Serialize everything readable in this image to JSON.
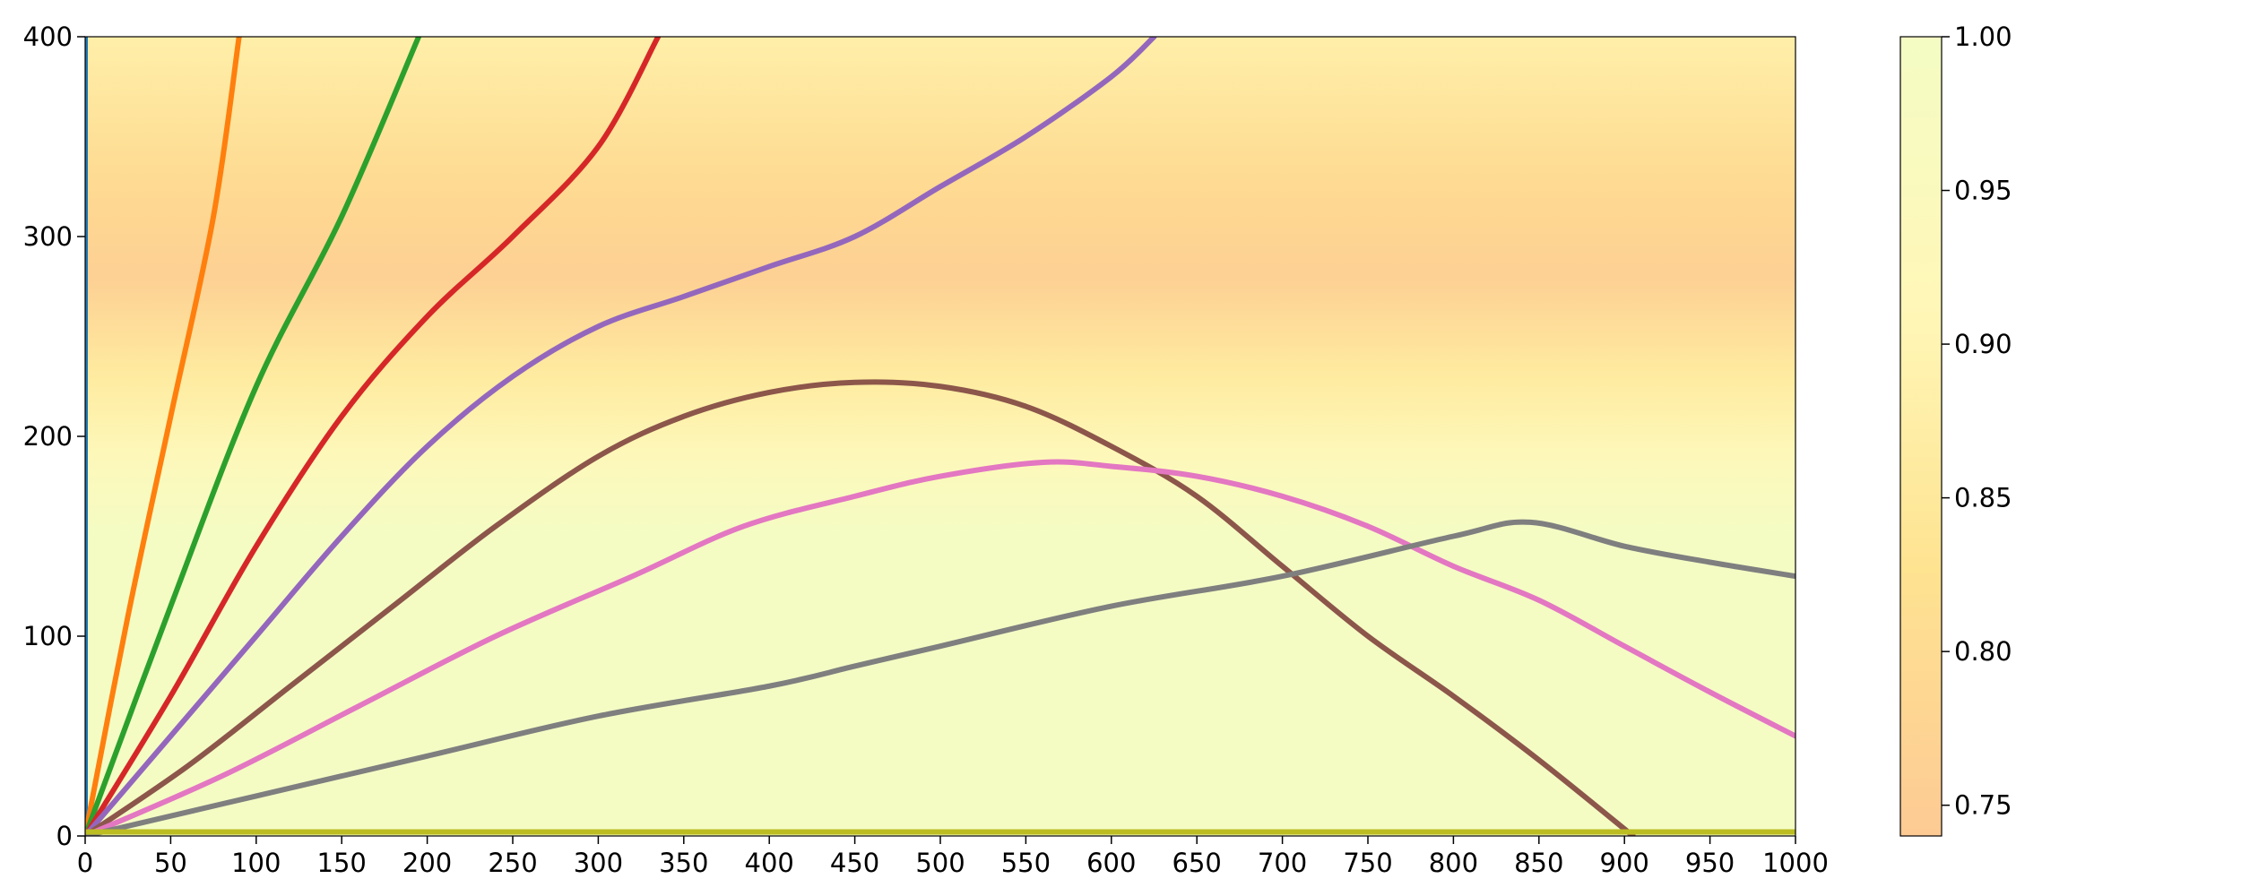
{
  "chart_data": {
    "type": "line",
    "title": "",
    "xlabel": "",
    "ylabel": "",
    "xlim": [
      0,
      1000
    ],
    "ylim": [
      0,
      400
    ],
    "x_ticks": [
      0,
      50,
      100,
      150,
      200,
      250,
      300,
      350,
      400,
      450,
      500,
      550,
      600,
      650,
      700,
      750,
      800,
      850,
      900,
      950,
      1000
    ],
    "y_ticks": [
      0,
      100,
      200,
      300,
      400
    ],
    "grid": false,
    "legend": "none",
    "background_heatmap": {
      "description_axis": "y",
      "colormap_colors": [
        "#fdca94",
        "#fee391",
        "#fff7b8",
        "#f4fcc4"
      ],
      "profile": [
        {
          "y": 0,
          "value": 1.0
        },
        {
          "y": 150,
          "value": 1.0
        },
        {
          "y": 190,
          "value": 0.93
        },
        {
          "y": 230,
          "value": 0.86
        },
        {
          "y": 280,
          "value": 0.76
        },
        {
          "y": 330,
          "value": 0.8
        },
        {
          "y": 400,
          "value": 0.88
        }
      ]
    },
    "colorbar": {
      "ticks": [
        0.75,
        0.8,
        0.85,
        0.9,
        0.95,
        1.0
      ],
      "tick_labels": [
        "0.75",
        "0.80",
        "0.85",
        "0.90",
        "0.95",
        "1.00"
      ],
      "range": [
        0.74,
        1.0
      ],
      "colors": [
        "#fdca94",
        "#fee391",
        "#fff7b8",
        "#f4fcc4"
      ]
    },
    "series": [
      {
        "color": "#1f77b4",
        "points": [
          [
            0,
            0
          ],
          [
            0,
            400
          ]
        ]
      },
      {
        "color": "#ff7f0e",
        "points": [
          [
            0,
            0
          ],
          [
            25,
            110
          ],
          [
            50,
            210
          ],
          [
            75,
            310
          ],
          [
            90,
            400
          ]
        ]
      },
      {
        "color": "#2ca02c",
        "points": [
          [
            0,
            0
          ],
          [
            50,
            115
          ],
          [
            100,
            225
          ],
          [
            150,
            310
          ],
          [
            195,
            400
          ]
        ]
      },
      {
        "color": "#d62728",
        "points": [
          [
            0,
            0
          ],
          [
            50,
            70
          ],
          [
            100,
            145
          ],
          [
            150,
            210
          ],
          [
            200,
            260
          ],
          [
            250,
            300
          ],
          [
            300,
            345
          ],
          [
            335,
            400
          ]
        ]
      },
      {
        "color": "#9467bd",
        "points": [
          [
            0,
            0
          ],
          [
            50,
            50
          ],
          [
            100,
            100
          ],
          [
            150,
            150
          ],
          [
            200,
            195
          ],
          [
            250,
            230
          ],
          [
            300,
            255
          ],
          [
            350,
            270
          ],
          [
            400,
            285
          ],
          [
            450,
            300
          ],
          [
            500,
            325
          ],
          [
            550,
            350
          ],
          [
            600,
            380
          ],
          [
            625,
            400
          ]
        ]
      },
      {
        "color": "#8c564b",
        "points": [
          [
            0,
            0
          ],
          [
            60,
            35
          ],
          [
            120,
            75
          ],
          [
            180,
            115
          ],
          [
            240,
            155
          ],
          [
            300,
            190
          ],
          [
            350,
            210
          ],
          [
            400,
            222
          ],
          [
            450,
            227
          ],
          [
            500,
            225
          ],
          [
            550,
            215
          ],
          [
            600,
            195
          ],
          [
            650,
            170
          ],
          [
            700,
            135
          ],
          [
            750,
            100
          ],
          [
            800,
            70
          ],
          [
            850,
            38
          ],
          [
            905,
            0
          ]
        ]
      },
      {
        "color": "#e377c2",
        "points": [
          [
            0,
            0
          ],
          [
            80,
            30
          ],
          [
            160,
            65
          ],
          [
            240,
            100
          ],
          [
            320,
            130
          ],
          [
            385,
            155
          ],
          [
            450,
            170
          ],
          [
            500,
            180
          ],
          [
            560,
            187
          ],
          [
            600,
            185
          ],
          [
            650,
            180
          ],
          [
            700,
            170
          ],
          [
            750,
            155
          ],
          [
            800,
            135
          ],
          [
            850,
            118
          ],
          [
            900,
            95
          ],
          [
            950,
            72
          ],
          [
            1000,
            50
          ]
        ]
      },
      {
        "color": "#7f7f7f",
        "points": [
          [
            0,
            0
          ],
          [
            100,
            20
          ],
          [
            200,
            40
          ],
          [
            300,
            60
          ],
          [
            400,
            75
          ],
          [
            450,
            85
          ],
          [
            500,
            95
          ],
          [
            600,
            115
          ],
          [
            700,
            130
          ],
          [
            800,
            150
          ],
          [
            845,
            157
          ],
          [
            900,
            145
          ],
          [
            950,
            137
          ],
          [
            1000,
            130
          ]
        ]
      },
      {
        "color": "#bcbd22",
        "points": [
          [
            0,
            2
          ],
          [
            1000,
            2
          ]
        ]
      }
    ]
  }
}
